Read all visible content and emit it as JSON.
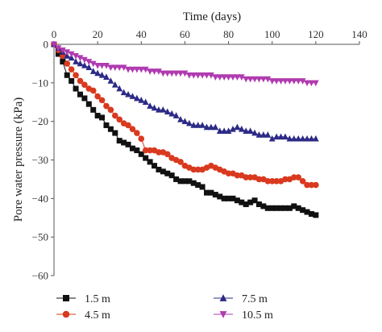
{
  "chart_data": {
    "type": "line",
    "title": "",
    "xlabel": "Time (days)",
    "ylabel": "Pore water pressure (kPa)",
    "xlim": [
      0,
      140
    ],
    "ylim": [
      -60,
      0
    ],
    "x_ticks": [
      0,
      20,
      40,
      60,
      80,
      100,
      120,
      140
    ],
    "y_ticks": [
      0,
      -10,
      -20,
      -30,
      -40,
      -50,
      -60
    ],
    "x_axis_position": "top",
    "grid": false,
    "legend_position": "bottom",
    "series": [
      {
        "name": "1.5 m",
        "color": "#111111",
        "marker": "square",
        "x": [
          0,
          2,
          4,
          6,
          8,
          10,
          12,
          14,
          16,
          18,
          20,
          22,
          24,
          26,
          28,
          30,
          32,
          34,
          36,
          38,
          40,
          42,
          44,
          46,
          48,
          50,
          52,
          54,
          56,
          58,
          60,
          62,
          64,
          66,
          68,
          70,
          72,
          74,
          76,
          78,
          80,
          82,
          84,
          86,
          88,
          90,
          92,
          94,
          96,
          98,
          100,
          102,
          104,
          106,
          108,
          110,
          112,
          114,
          116,
          118,
          120
        ],
        "y": [
          0,
          -2.5,
          -4.5,
          -8,
          -9.5,
          -11.5,
          -13,
          -14,
          -15.5,
          -17,
          -18.5,
          -19,
          -21,
          -22,
          -23,
          -25,
          -25.5,
          -26,
          -27,
          -27.5,
          -28.5,
          -29.5,
          -30.5,
          -31.5,
          -32.5,
          -33,
          -33.5,
          -34,
          -35,
          -35.5,
          -35.5,
          -35.5,
          -36,
          -36.5,
          -37,
          -38.5,
          -38.5,
          -39,
          -39.5,
          -40,
          -40,
          -40,
          -40.5,
          -41,
          -41.5,
          -41,
          -40.5,
          -41.5,
          -42,
          -42.5,
          -42.5,
          -42.5,
          -42.5,
          -42.5,
          -42.5,
          -42,
          -42.5,
          -43,
          -43.5,
          -44,
          -44.3
        ]
      },
      {
        "name": "4.5 m",
        "color": "#d9391e",
        "marker": "circle",
        "x": [
          0,
          2,
          4,
          6,
          8,
          10,
          12,
          14,
          16,
          18,
          20,
          22,
          24,
          26,
          28,
          30,
          32,
          34,
          36,
          38,
          40,
          42,
          44,
          46,
          48,
          50,
          52,
          54,
          56,
          58,
          60,
          62,
          64,
          66,
          68,
          70,
          72,
          74,
          76,
          78,
          80,
          82,
          84,
          86,
          88,
          90,
          92,
          94,
          96,
          98,
          100,
          102,
          104,
          106,
          108,
          110,
          112,
          114,
          116,
          118,
          120
        ],
        "y": [
          0,
          -1.5,
          -3,
          -5,
          -6.5,
          -8,
          -9.5,
          -10.5,
          -11.5,
          -12,
          -13.5,
          -14.5,
          -16,
          -17,
          -18.5,
          -19.5,
          -20.5,
          -21,
          -22,
          -23,
          -24.5,
          -27.5,
          -27.5,
          -27.5,
          -28,
          -28,
          -28.5,
          -29.5,
          -30,
          -30.5,
          -31.5,
          -32,
          -32.5,
          -32.5,
          -32.5,
          -32,
          -31.5,
          -32,
          -32.5,
          -33,
          -33.5,
          -33.5,
          -34,
          -34,
          -34.5,
          -34.5,
          -34.5,
          -35,
          -35,
          -35.5,
          -35.5,
          -35.5,
          -35.5,
          -35,
          -35,
          -34.5,
          -34.5,
          -35.5,
          -36.5,
          -36.5,
          -36.5
        ]
      },
      {
        "name": "7.5 m",
        "color": "#2c2a86",
        "marker": "triangle-up",
        "x": [
          0,
          2,
          4,
          6,
          8,
          10,
          12,
          14,
          16,
          18,
          20,
          22,
          24,
          26,
          28,
          30,
          32,
          34,
          36,
          38,
          40,
          42,
          44,
          46,
          48,
          50,
          52,
          54,
          56,
          58,
          60,
          62,
          64,
          66,
          68,
          70,
          72,
          74,
          76,
          78,
          80,
          82,
          84,
          86,
          88,
          90,
          92,
          94,
          96,
          98,
          100,
          102,
          104,
          106,
          108,
          110,
          112,
          114,
          116,
          118,
          120
        ],
        "y": [
          0,
          -1,
          -2,
          -3,
          -3.5,
          -4.5,
          -5,
          -5.5,
          -6,
          -7,
          -7.5,
          -8,
          -8.5,
          -9.5,
          -10.5,
          -11.5,
          -12.5,
          -13,
          -13.5,
          -14,
          -14.5,
          -15,
          -16,
          -16.5,
          -17,
          -17,
          -17.5,
          -18,
          -18.5,
          -19.5,
          -20,
          -20.5,
          -21,
          -21,
          -21,
          -21.5,
          -21.5,
          -21.5,
          -22.5,
          -22.5,
          -22.5,
          -22,
          -21.5,
          -22,
          -22.5,
          -22.5,
          -23,
          -23.5,
          -23.5,
          -23.5,
          -24.5,
          -24,
          -24,
          -24,
          -24.5,
          -24.5,
          -24.5,
          -24.5,
          -24.5,
          -24.5,
          -24.5
        ]
      },
      {
        "name": "10.5 m",
        "color": "#b03ab0",
        "marker": "triangle-down",
        "x": [
          0,
          2,
          4,
          6,
          8,
          10,
          12,
          14,
          16,
          18,
          20,
          22,
          24,
          26,
          28,
          30,
          32,
          34,
          36,
          38,
          40,
          42,
          44,
          46,
          48,
          50,
          52,
          54,
          56,
          58,
          60,
          62,
          64,
          66,
          68,
          70,
          72,
          74,
          76,
          78,
          80,
          82,
          84,
          86,
          88,
          90,
          92,
          94,
          96,
          98,
          100,
          102,
          104,
          106,
          108,
          110,
          112,
          114,
          116,
          118,
          120
        ],
        "y": [
          0,
          -1,
          -1.5,
          -2,
          -2.5,
          -3,
          -3.5,
          -4,
          -4.5,
          -5,
          -5.5,
          -5.5,
          -5.5,
          -6,
          -6,
          -6,
          -6,
          -6.5,
          -6.5,
          -6.5,
          -6.5,
          -6.5,
          -7,
          -7,
          -7,
          -7.5,
          -7.5,
          -7.5,
          -7.5,
          -7.5,
          -7.5,
          -8,
          -8,
          -8,
          -8,
          -8,
          -8,
          -8.5,
          -8.5,
          -8.5,
          -8.5,
          -8.5,
          -8.5,
          -8.5,
          -9,
          -9,
          -9,
          -9,
          -9,
          -9,
          -9.5,
          -9.5,
          -9.5,
          -9.5,
          -9.5,
          -9.5,
          -9.5,
          -9.5,
          -10,
          -10,
          -10
        ]
      }
    ]
  }
}
